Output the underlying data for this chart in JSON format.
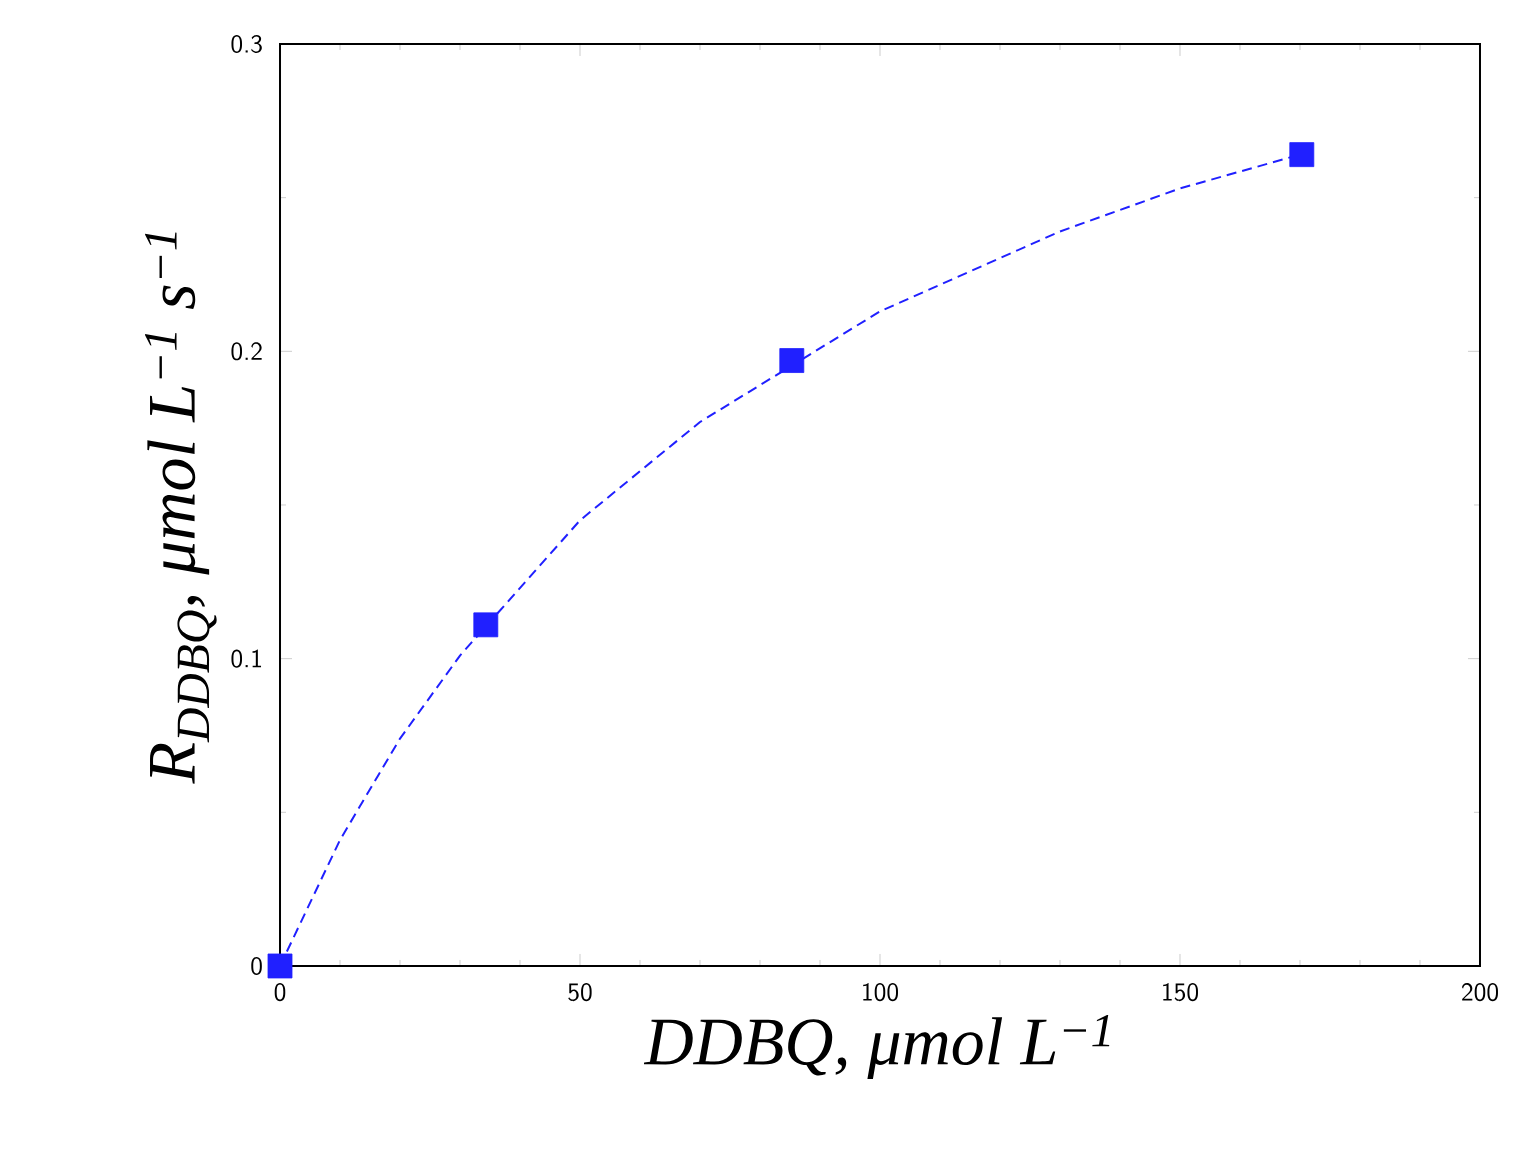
{
  "chart_data": {
    "type": "scatter",
    "xlabel": "DDBQ, μmol L$^{−1}$",
    "ylabel": "R$_{DDBQ}$, μmol L$^{−1}$ s$^{−1}$",
    "xlim": [
      0,
      200
    ],
    "ylim": [
      0,
      0.3
    ],
    "xticks": [
      0,
      50,
      100,
      150,
      200
    ],
    "yticks": [
      0,
      0.1,
      0.2,
      0.3
    ],
    "grid": false,
    "series": [
      {
        "type": "line",
        "color": "#2020ff",
        "line_style": "dashed",
        "marker": "none",
        "x": [
          0,
          10,
          20,
          30,
          50,
          70,
          100,
          130,
          150,
          170
        ],
        "values": [
          0,
          0.041,
          0.074,
          0.101,
          0.145,
          0.177,
          0.213,
          0.239,
          0.253,
          0.264
        ]
      },
      {
        "color": "#2020ff",
        "marker": "square",
        "x": [
          0,
          34.3,
          85.3,
          170.3
        ],
        "values": [
          0,
          0.111,
          0.197,
          0.264
        ]
      }
    ]
  }
}
